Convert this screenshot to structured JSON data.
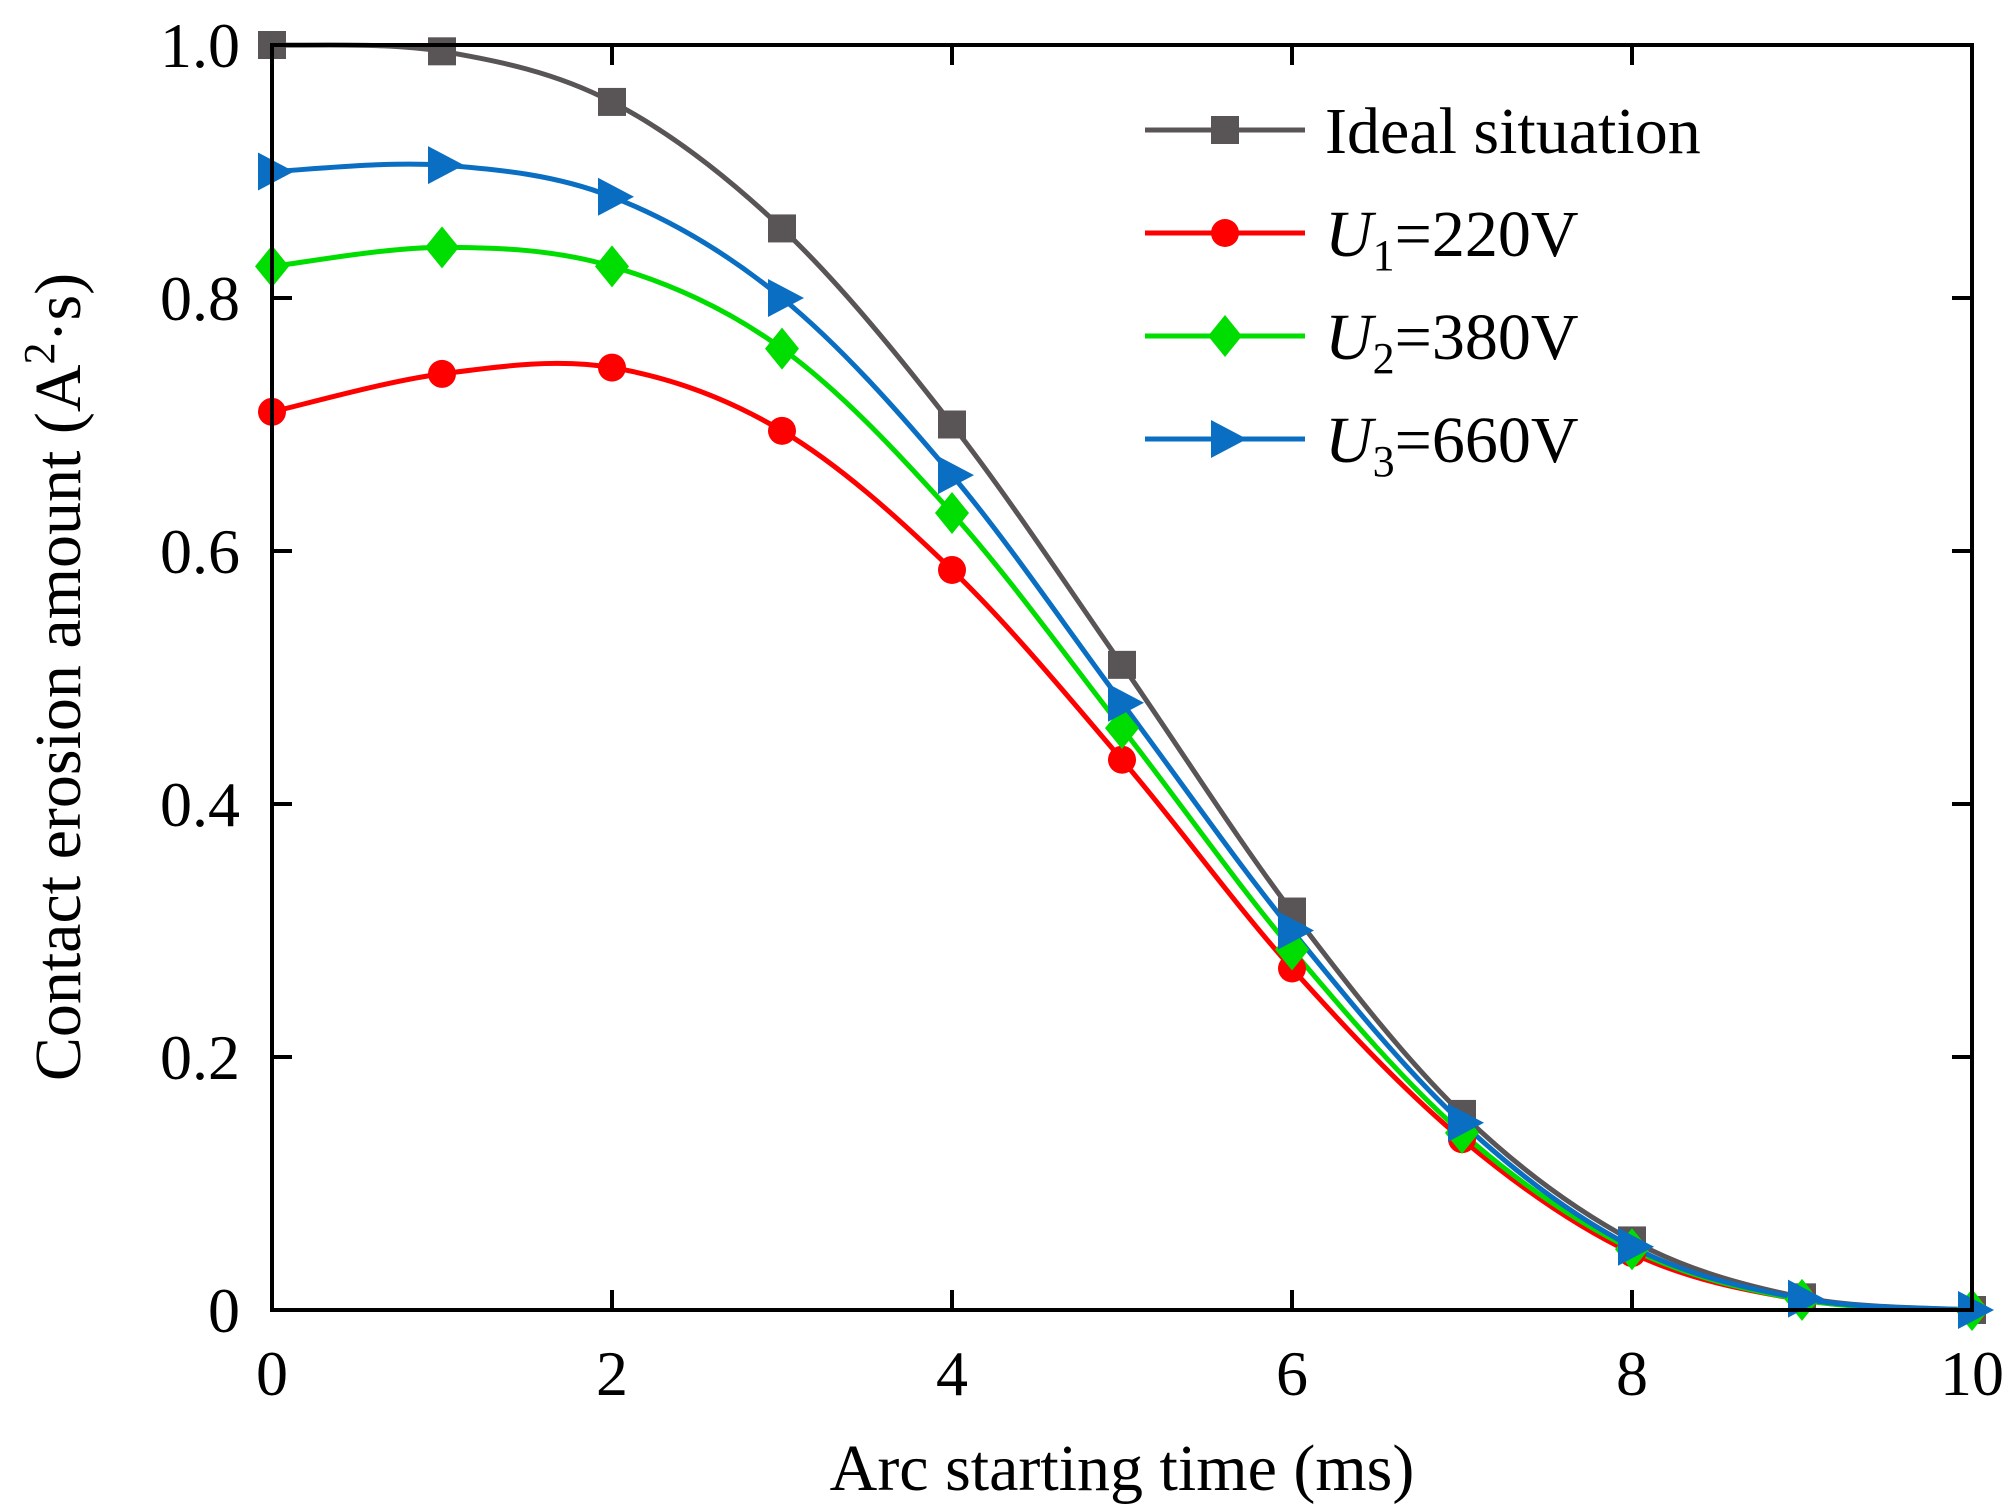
{
  "chart_data": {
    "type": "line",
    "xlabel": "Arc starting time (ms)",
    "ylabel": {
      "main": "Contact erosion amount (A",
      "sup": "2",
      "tail": "·s)"
    },
    "xlim": [
      0,
      10
    ],
    "ylim": [
      0,
      1.0
    ],
    "x_ticks": [
      "0",
      "2",
      "4",
      "6",
      "8",
      "10"
    ],
    "y_ticks": [
      "0",
      "0.2",
      "0.4",
      "0.6",
      "0.8",
      "1.0"
    ],
    "grid": false,
    "legend_position": "top-right",
    "x": [
      0,
      1,
      2,
      3,
      4,
      5,
      6,
      7,
      8,
      9,
      10
    ],
    "series": [
      {
        "name": "Ideal situation",
        "label": {
          "prefix": "Ideal situation",
          "sub": "",
          "suffix": ""
        },
        "color": "#595456",
        "marker": "square",
        "values": [
          1.0,
          0.995,
          0.955,
          0.855,
          0.7,
          0.51,
          0.315,
          0.155,
          0.055,
          0.01,
          0.0
        ]
      },
      {
        "name": "U1=220V",
        "label": {
          "prefix": "U",
          "sub": "1",
          "suffix": "=220V"
        },
        "color": "#ff0000",
        "marker": "circle",
        "values": [
          0.71,
          0.74,
          0.745,
          0.695,
          0.585,
          0.435,
          0.27,
          0.135,
          0.045,
          0.008,
          0.0
        ]
      },
      {
        "name": "U2=380V",
        "label": {
          "prefix": "U",
          "sub": "2",
          "suffix": "=380V"
        },
        "color": "#00dd00",
        "marker": "diamond",
        "values": [
          0.825,
          0.84,
          0.825,
          0.76,
          0.63,
          0.46,
          0.285,
          0.14,
          0.048,
          0.008,
          0.0
        ]
      },
      {
        "name": "U3=660V",
        "label": {
          "prefix": "U",
          "sub": "3",
          "suffix": "=660V"
        },
        "color": "#0a6fc2",
        "marker": "triangle-right",
        "values": [
          0.9,
          0.905,
          0.88,
          0.8,
          0.66,
          0.48,
          0.3,
          0.148,
          0.05,
          0.009,
          0.0
        ]
      }
    ]
  }
}
